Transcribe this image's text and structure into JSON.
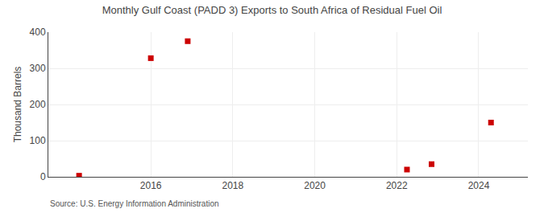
{
  "chart_data": {
    "type": "scatter",
    "title": "Monthly Gulf Coast (PADD 3) Exports to South Africa of Residual Fuel Oil",
    "y_label": "Thousand Barrels",
    "annotations": [
      "Source: U.S. Energy Information Administration"
    ],
    "x": [
      2014.25,
      2016.0,
      2016.9,
      2022.25,
      2022.85,
      2024.3
    ],
    "values": [
      3,
      328,
      375,
      20,
      35,
      150
    ],
    "color": "#cc0000",
    "marker": "square",
    "xlim": [
      2013.5,
      2025.2
    ],
    "ylim": [
      0,
      400
    ],
    "xticks": [
      2016,
      2018,
      2020,
      2022,
      2024
    ],
    "yticks": [
      0,
      100,
      200,
      300,
      400
    ],
    "grid": true
  }
}
